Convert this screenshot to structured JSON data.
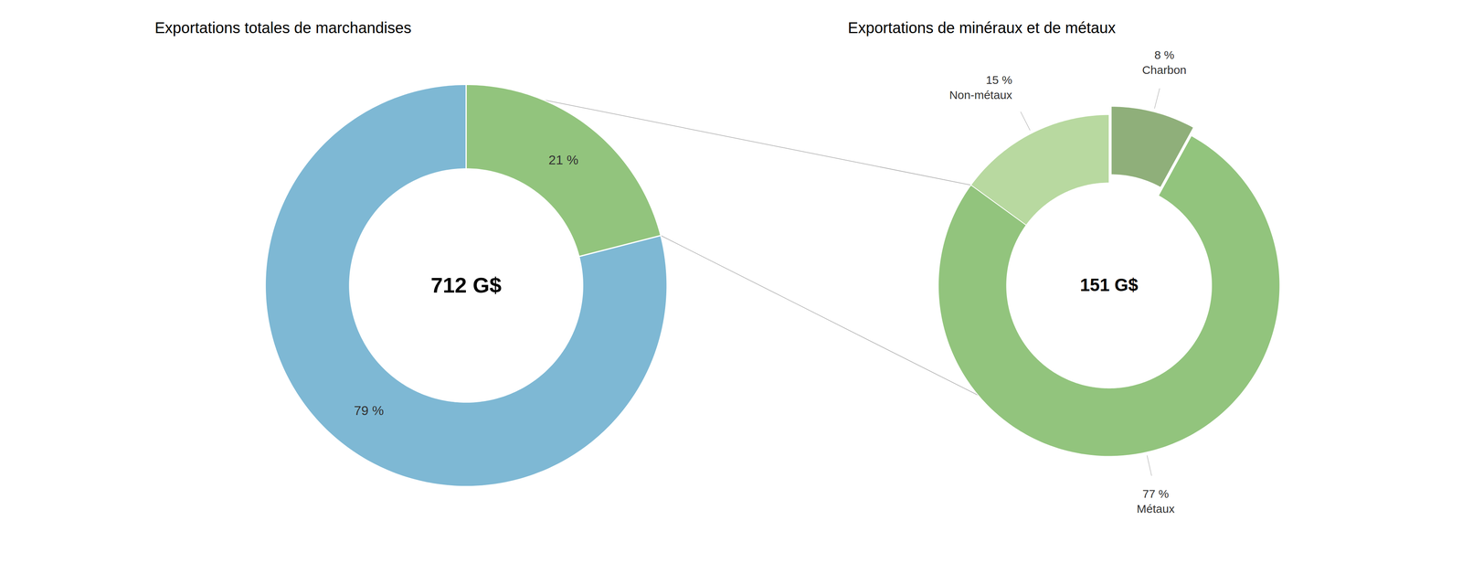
{
  "chart_data": [
    {
      "type": "donut",
      "title": "Exportations totales de marchandises",
      "values": [
        79,
        21
      ],
      "value_labels": [
        "79 %",
        "21 %"
      ],
      "colors": [
        "#7EB8D4",
        "#92C47D"
      ],
      "annotations": [
        "712 G$"
      ],
      "data_labels": true
    },
    {
      "type": "donut",
      "title": "Exportations de minéraux et de métaux",
      "categories": [
        "Non-métaux",
        "Charbon",
        "Métaux"
      ],
      "values": [
        15,
        8,
        77
      ],
      "value_labels": [
        "15 %",
        "8 %",
        "77 %"
      ],
      "colors": [
        "#B8D9A0",
        "#8FAF7A",
        "#92C47D"
      ],
      "annotations": [
        "151 G$"
      ],
      "data_labels": true
    }
  ]
}
